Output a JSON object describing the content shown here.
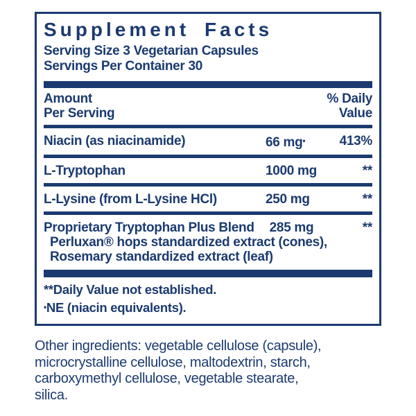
{
  "colors": {
    "navy": "#1b3a70",
    "background": "#ffffff"
  },
  "panel": {
    "title": "Supplement Facts",
    "serving_size": "Serving Size 3 Vegetarian Capsules",
    "servings_per_container": "Servings Per Container 30",
    "header": {
      "amount_line1": "Amount",
      "amount_line2": "Per Serving",
      "dv_line1": "% Daily",
      "dv_line2": "Value"
    },
    "rows": [
      {
        "name": "Niacin (as niacinamide)",
        "amount": "66 mg",
        "amount_marker": "•",
        "dv": "413%"
      },
      {
        "name": "L-Tryptophan",
        "amount": "1000 mg",
        "dv": "**"
      },
      {
        "name": "L-Lysine (from L-Lysine HCl)",
        "amount": "250 mg",
        "dv": "**"
      }
    ],
    "blend": {
      "name": "Proprietary Tryptophan Plus Blend",
      "amount": "285 mg",
      "dv": "**",
      "sub_lines": [
        "Perluxan® hops standardized extract (cones),",
        "Rosemary standardized extract (leaf)"
      ]
    },
    "footnotes": {
      "daily_value": "**Daily Value not established.",
      "ne_marker": "•",
      "ne_text": "NE (niacin equivalents)."
    }
  },
  "other_ingredients": {
    "lines": [
      "Other ingredients: vegetable cellulose (capsule),",
      "microcrystalline cellulose, maltodextrin, starch,",
      "carboxymethyl cellulose, vegetable stearate,",
      "silica."
    ]
  }
}
